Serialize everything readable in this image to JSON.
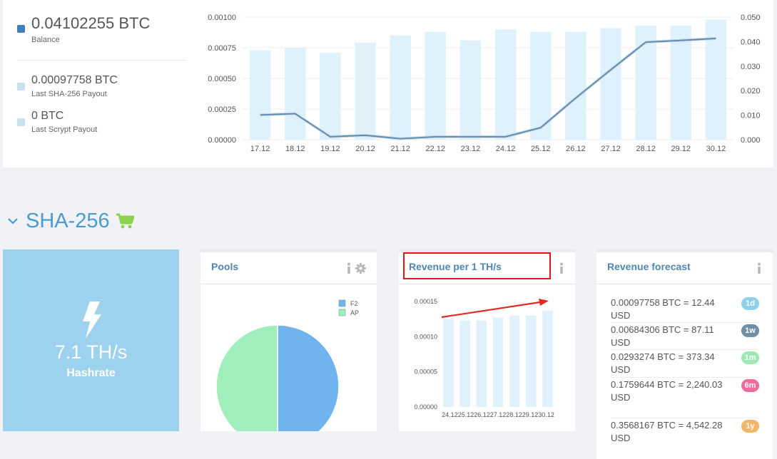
{
  "balance": {
    "total_value": "0.04102255 BTC",
    "total_label": "Balance",
    "total_color": "#3f7fc0",
    "sha_value": "0.00097758 BTC",
    "sha_label": "Last SHA-256 Payout",
    "sha_color": "#c6e2ee",
    "scrypt_value": "0 BTC",
    "scrypt_label": "Last Scrypt Payout",
    "scrypt_color": "#c6e2ee"
  },
  "chart_data": [
    {
      "type": "bar",
      "categories": [
        "17.12",
        "18.12",
        "19.12",
        "20.12",
        "21.12",
        "22.12",
        "23.12",
        "24.12",
        "25.12",
        "26.12",
        "27.12",
        "28.12",
        "29.12",
        "30.12"
      ],
      "series": [
        {
          "axis": "left",
          "type": "bar",
          "color": "#dff1fb",
          "values": [
            0.00073,
            0.00075,
            0.00071,
            0.00079,
            0.00085,
            0.00088,
            0.00081,
            0.0009,
            0.00088,
            0.00088,
            0.00091,
            0.00093,
            0.00093,
            0.00098
          ]
        },
        {
          "axis": "right",
          "type": "line",
          "color": "#5a8ab2",
          "values": [
            0.0101,
            0.0106,
            0.0012,
            0.0018,
            0.0004,
            0.0012,
            0.0012,
            0.0012,
            0.0049,
            0.017,
            0.0285,
            0.0398,
            0.0405,
            0.0413
          ]
        }
      ],
      "left_ticks": [
        "0.00000",
        "0.00025",
        "0.00050",
        "0.00075",
        "0.00100"
      ],
      "right_ticks": [
        "0.000",
        "0.010",
        "0.020",
        "0.030",
        "0.040",
        "0.050"
      ],
      "ylim_left": [
        0,
        0.001
      ],
      "ylim_right": [
        0,
        0.05
      ],
      "grid": true
    },
    {
      "type": "pie",
      "title": "Pools",
      "labels": [
        "F2",
        "AP"
      ],
      "values": [
        50,
        50
      ],
      "colors": [
        "#6fb4ee",
        "#a0eebb"
      ],
      "legend": "top-right"
    },
    {
      "type": "bar",
      "title": "Revenue per 1 TH/s",
      "categories": [
        "24.12",
        "25.12",
        "26.12",
        "27.12",
        "28.12",
        "29.12",
        "30.12"
      ],
      "category_labels_text": "24.1225.1226.1227.1228.1229.1230.12",
      "values": [
        0.000125,
        0.000123,
        0.000123,
        0.000127,
        0.00013,
        0.00013,
        0.000137
      ],
      "ticks": [
        "0.00000",
        "0.00005",
        "0.00010",
        "0.00015"
      ],
      "ylim": [
        0,
        0.00015
      ],
      "grid": false,
      "color": "#dff1fb"
    }
  ],
  "section": {
    "title": "SHA-256"
  },
  "hashrate": {
    "value": "7.1 TH/s",
    "label": "Hashrate"
  },
  "pools": {
    "title": "Pools",
    "legend": [
      "F2",
      "AP"
    ]
  },
  "revenue": {
    "title": "Revenue per 1 TH/s",
    "highlight_color": "#e8141a",
    "arrow_color": "#e02a23"
  },
  "forecast": {
    "title": "Revenue forecast",
    "rows": [
      {
        "text": "0.00097758 BTC = 12.44 USD",
        "badge": "1d",
        "color": "#8fd0ee"
      },
      {
        "text": "0.00684306 BTC = 87.11 USD",
        "badge": "1w",
        "color": "#6f8fa6"
      },
      {
        "text": "0.0293274 BTC = 373.34 USD",
        "badge": "1m",
        "color": "#9ee8b4"
      },
      {
        "text": "0.1759644 BTC = 2,240.03 USD",
        "badge": "6m",
        "color": "#f06b9a"
      },
      {
        "text": "0.3568167 BTC = 4,542.28 USD",
        "badge": "1y",
        "color": "#f3b665"
      }
    ]
  }
}
